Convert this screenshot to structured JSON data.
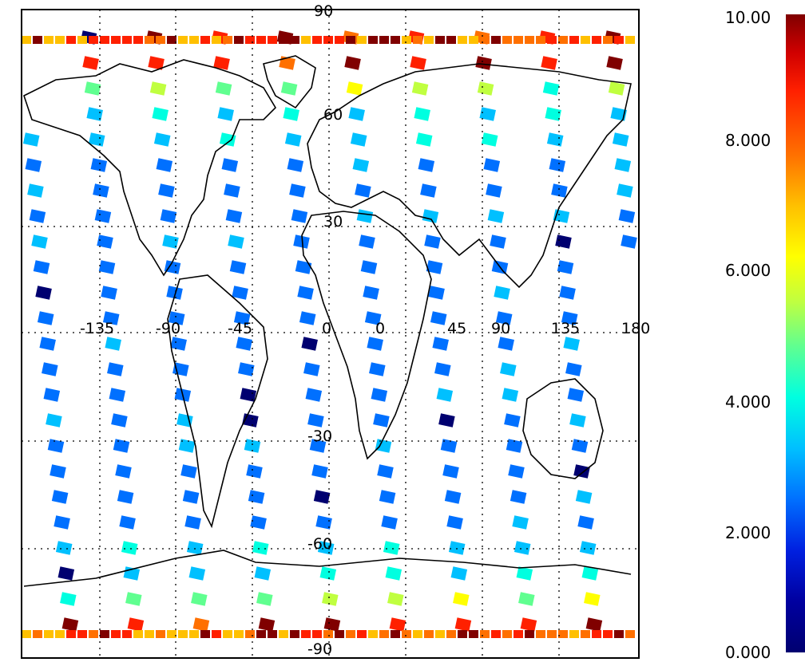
{
  "map": {
    "lat_labels": [
      "90",
      "60",
      "30",
      "0",
      "-30",
      "-60",
      "-90"
    ],
    "lon_labels": [
      "-135",
      "-90",
      "-45",
      "0",
      "45",
      "90",
      "135",
      "180"
    ]
  },
  "colorbar": {
    "ticks": [
      "10.00",
      "8.000",
      "6.000",
      "4.000",
      "2.000",
      "0.000"
    ],
    "range": [
      0,
      10
    ],
    "colors": [
      "#000070",
      "#0020e0",
      "#0070ff",
      "#00c0ff",
      "#00ffe0",
      "#60ff90",
      "#c0ff40",
      "#ffff00",
      "#ffc000",
      "#ff7000",
      "#ff2000",
      "#800000"
    ]
  },
  "colors": {
    "land_outline": "#000000",
    "frame": "#000000",
    "background": "#ffffff"
  }
}
